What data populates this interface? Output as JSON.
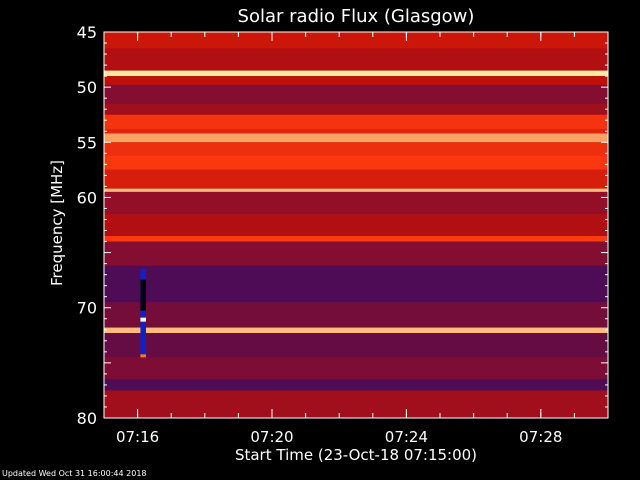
{
  "chart_data": {
    "type": "heatmap",
    "title": "Solar radio Flux (Glasgow)",
    "xlabel": "Start Time (23-Oct-18 07:15:00)",
    "ylabel": "Frequency [MHz]",
    "x_unit": "time",
    "x_range": [
      "07:15:00",
      "07:30:00"
    ],
    "x_ticks": [
      "07:16",
      "07:20",
      "07:24",
      "07:28"
    ],
    "y_range": [
      45,
      80
    ],
    "y_inverted": true,
    "y_ticks": [
      "45",
      "50",
      "55",
      "60",
      "70",
      "80"
    ],
    "grid": false,
    "legend": "none",
    "colors": {
      "background": "#000000",
      "low": "#2a0a6e",
      "mid": "#c01008",
      "high": "#ff3a10",
      "peak": "#ffe8a0"
    },
    "bands": [
      {
        "freq_from": 45.0,
        "freq_to": 46.5,
        "level": 0.55
      },
      {
        "freq_from": 46.5,
        "freq_to": 48.5,
        "level": 0.45
      },
      {
        "freq_from": 48.5,
        "freq_to": 49.0,
        "level": 1.0
      },
      {
        "freq_from": 49.0,
        "freq_to": 49.8,
        "level": 0.5
      },
      {
        "freq_from": 49.8,
        "freq_to": 51.5,
        "level": 0.3
      },
      {
        "freq_from": 51.5,
        "freq_to": 52.5,
        "level": 0.4
      },
      {
        "freq_from": 52.5,
        "freq_to": 53.8,
        "level": 0.75
      },
      {
        "freq_from": 53.8,
        "freq_to": 54.2,
        "level": 0.65
      },
      {
        "freq_from": 54.2,
        "freq_to": 55.0,
        "level": 0.92
      },
      {
        "freq_from": 55.0,
        "freq_to": 56.2,
        "level": 0.72
      },
      {
        "freq_from": 56.2,
        "freq_to": 57.5,
        "level": 0.78
      },
      {
        "freq_from": 57.5,
        "freq_to": 59.2,
        "level": 0.6
      },
      {
        "freq_from": 59.2,
        "freq_to": 59.5,
        "level": 0.95
      },
      {
        "freq_from": 59.5,
        "freq_to": 61.5,
        "level": 0.35
      },
      {
        "freq_from": 61.5,
        "freq_to": 63.5,
        "level": 0.45
      },
      {
        "freq_from": 63.5,
        "freq_to": 64.0,
        "level": 0.8
      },
      {
        "freq_from": 64.0,
        "freq_to": 66.2,
        "level": 0.3
      },
      {
        "freq_from": 66.2,
        "freq_to": 69.5,
        "level": 0.12
      },
      {
        "freq_from": 69.5,
        "freq_to": 71.8,
        "level": 0.25
      },
      {
        "freq_from": 71.8,
        "freq_to": 72.3,
        "level": 0.95
      },
      {
        "freq_from": 72.3,
        "freq_to": 74.5,
        "level": 0.2
      },
      {
        "freq_from": 74.5,
        "freq_to": 76.5,
        "level": 0.28
      },
      {
        "freq_from": 76.5,
        "freq_to": 77.5,
        "level": 0.12
      },
      {
        "freq_from": 77.5,
        "freq_to": 80.0,
        "level": 0.4
      }
    ],
    "events": [
      {
        "time_from": "07:16:05",
        "time_to": "07:16:15",
        "freq_from": 66.5,
        "freq_to": 74.5,
        "type": "burst"
      }
    ]
  },
  "footer": "Updated Wed Oct 31 16:00:44 2018"
}
